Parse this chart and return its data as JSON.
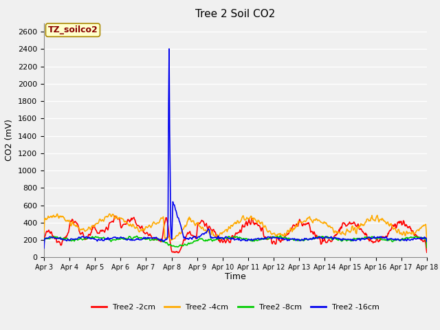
{
  "title": "Tree 2 Soil CO2",
  "xlabel": "Time",
  "ylabel": "CO2 (mV)",
  "annotation_text": "TZ_soilco2",
  "annotation_color": "#880000",
  "annotation_bg": "#ffffcc",
  "annotation_border": "#aa8800",
  "ylim": [
    0,
    2700
  ],
  "yticks": [
    0,
    200,
    400,
    600,
    800,
    1000,
    1200,
    1400,
    1600,
    1800,
    2000,
    2200,
    2400,
    2600
  ],
  "xtick_labels": [
    "Apr 3",
    "Apr 4",
    "Apr 5",
    "Apr 6",
    "Apr 7",
    "Apr 8",
    "Apr 9",
    "Apr 10",
    "Apr 11",
    "Apr 12",
    "Apr 13",
    "Apr 14",
    "Apr 15",
    "Apr 16",
    "Apr 17",
    "Apr 18"
  ],
  "colors": {
    "red": "#ff0000",
    "orange": "#ffaa00",
    "green": "#00cc00",
    "blue": "#0000ee"
  },
  "legend_labels": [
    "Tree2 -2cm",
    "Tree2 -4cm",
    "Tree2 -8cm",
    "Tree2 -16cm"
  ],
  "fig_bg": "#f0f0f0",
  "plot_bg": "#f0f0f0",
  "grid_color": "#ffffff",
  "linewidth": 1.2
}
